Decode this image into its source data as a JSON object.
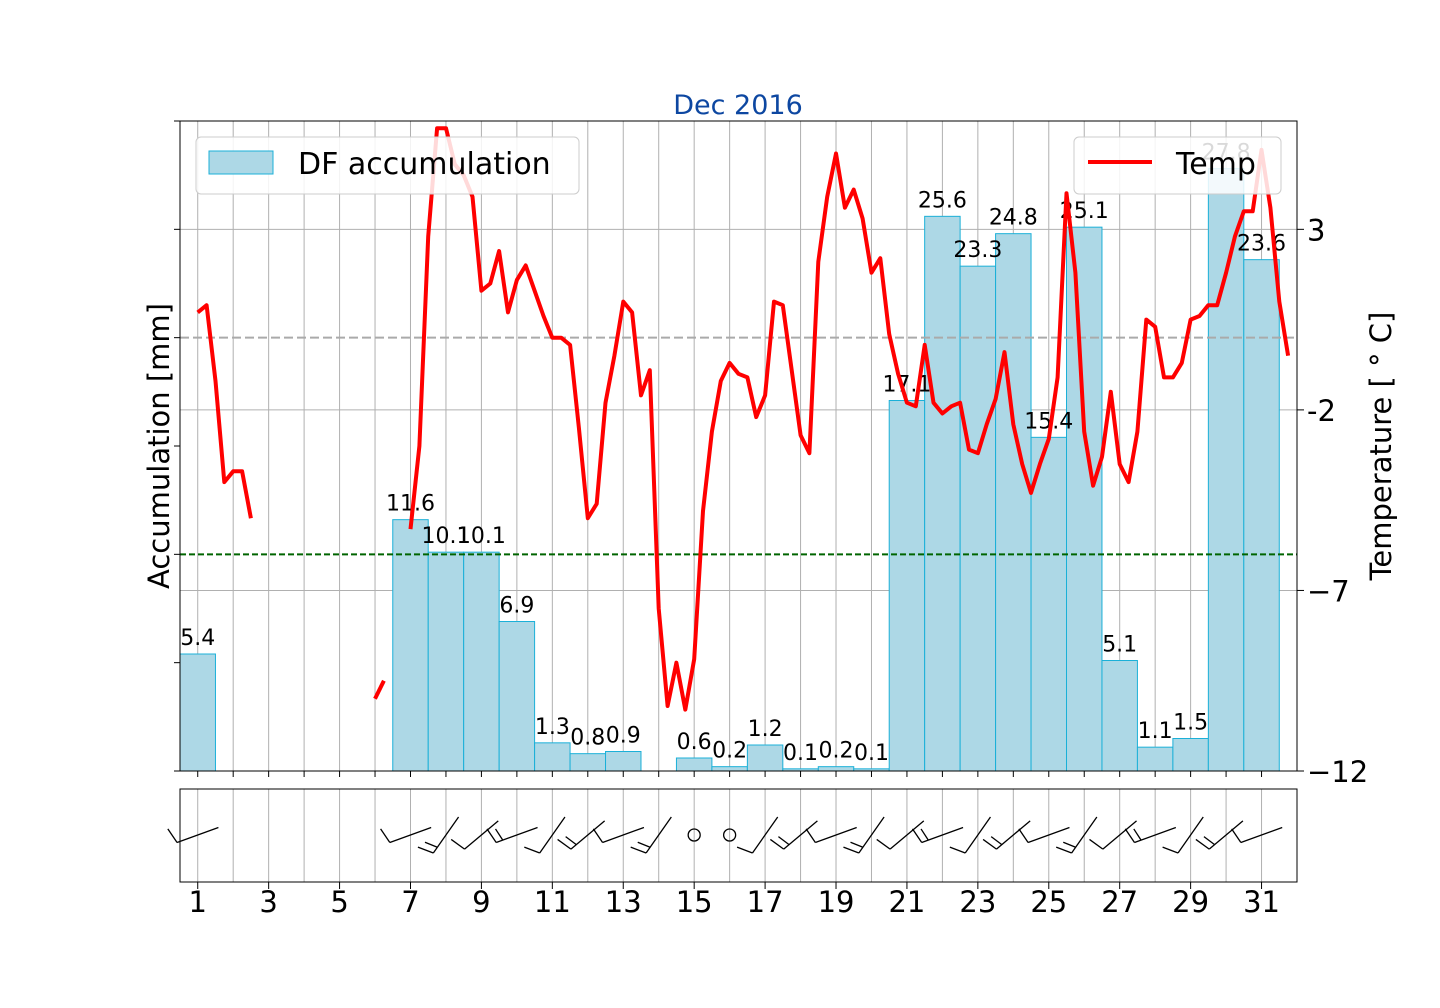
{
  "chart_data": {
    "type": "bar",
    "title": "Dec 2016",
    "title_color": "#0d47a1",
    "xlabel": "",
    "ylabel": "Accumulation [mm]",
    "ylabel_right": "Temperature [$^\\circ$C]",
    "ylabel_right_display": "Temperature [ ° C]",
    "x_ticks": [
      "1",
      "3",
      "5",
      "7",
      "9",
      "11",
      "13",
      "15",
      "17",
      "19",
      "21",
      "23",
      "25",
      "27",
      "29",
      "31"
    ],
    "xlim": [
      0.5,
      32
    ],
    "ylim_left": [
      0,
      30
    ],
    "ylim_right": [
      -12,
      6
    ],
    "y_ticks_right": [
      "3",
      "-2",
      "−7",
      "−12"
    ],
    "grid": true,
    "legend": [
      {
        "label": "DF accumulation",
        "placement": "top-left"
      },
      {
        "label": "Temp",
        "placement": "top-right"
      }
    ],
    "colors": {
      "bar_fill": "#add8e6",
      "bar_edge": "#1bb0d8",
      "temp_line": "#ff0000",
      "ref_gray": "#aaaaaa",
      "ref_green": "#006400",
      "grid": "#b0b0b0"
    },
    "reference_lines": [
      {
        "axis": "right",
        "value": 0,
        "style": "gray-dashed"
      },
      {
        "axis": "right",
        "value": -6,
        "style": "green-dashed"
      }
    ],
    "series": [
      {
        "name": "DF accumulation",
        "axis": "left",
        "days": [
          1,
          7,
          8,
          9,
          10,
          11,
          12,
          13,
          15,
          16,
          17,
          18,
          19,
          20,
          21,
          22,
          23,
          24,
          25,
          26,
          27,
          28,
          29,
          30,
          31
        ],
        "values": [
          5.4,
          11.6,
          10.1,
          10.1,
          6.9,
          1.3,
          0.8,
          0.9,
          0.6,
          0.2,
          1.2,
          0.1,
          0.2,
          0.1,
          17.1,
          25.6,
          23.3,
          24.8,
          15.4,
          25.1,
          5.1,
          1.1,
          1.5,
          27.8,
          23.6
        ],
        "labels": [
          "5.4",
          "11.6",
          "10.1",
          "10.1",
          "6.9",
          "1.3",
          "0.8",
          "0.9",
          "0.6",
          "0.2",
          "1.2",
          "0.1",
          "0.2",
          "0.1",
          "17.1",
          "25.6",
          "23.3",
          "24.8",
          "15.4",
          "25.1",
          "5.1",
          "1.1",
          "1.5",
          "27.8",
          "23.6"
        ]
      },
      {
        "name": "Temp",
        "axis": "right",
        "segments": [
          [
            [
              1.0,
              0.7
            ],
            [
              1.25,
              0.9
            ],
            [
              1.5,
              -1.2
            ],
            [
              1.75,
              -4.0
            ],
            [
              2.0,
              -3.7
            ],
            [
              2.25,
              -3.7
            ],
            [
              2.5,
              -5.0
            ]
          ],
          [
            [
              6.0,
              -10.0
            ],
            [
              6.25,
              -9.5
            ]
          ],
          [
            [
              7.0,
              -5.3
            ],
            [
              7.25,
              -3.0
            ],
            [
              7.5,
              2.8
            ],
            [
              7.75,
              5.8
            ],
            [
              8.0,
              5.8
            ],
            [
              8.25,
              4.8
            ],
            [
              8.5,
              4.5
            ],
            [
              8.75,
              3.9
            ],
            [
              9.0,
              1.3
            ],
            [
              9.25,
              1.5
            ],
            [
              9.5,
              2.4
            ],
            [
              9.75,
              0.7
            ],
            [
              10.0,
              1.6
            ],
            [
              10.25,
              2.0
            ],
            [
              10.5,
              1.3
            ],
            [
              10.75,
              0.6
            ],
            [
              11.0,
              0.0
            ],
            [
              11.25,
              0.0
            ],
            [
              11.5,
              -0.2
            ],
            [
              11.75,
              -2.5
            ],
            [
              12.0,
              -5.0
            ],
            [
              12.25,
              -4.6
            ],
            [
              12.5,
              -1.8
            ],
            [
              12.75,
              -0.5
            ],
            [
              13.0,
              1.0
            ],
            [
              13.25,
              0.7
            ],
            [
              13.5,
              -1.6
            ],
            [
              13.75,
              -0.9
            ],
            [
              14.0,
              -7.5
            ],
            [
              14.25,
              -10.2
            ],
            [
              14.5,
              -9.0
            ],
            [
              14.75,
              -10.3
            ],
            [
              15.0,
              -8.9
            ],
            [
              15.25,
              -4.8
            ],
            [
              15.5,
              -2.6
            ],
            [
              15.75,
              -1.2
            ],
            [
              16.0,
              -0.7
            ],
            [
              16.25,
              -1.0
            ],
            [
              16.5,
              -1.1
            ],
            [
              16.75,
              -2.2
            ],
            [
              17.0,
              -1.6
            ],
            [
              17.25,
              1.0
            ],
            [
              17.5,
              0.9
            ],
            [
              17.75,
              -0.9
            ],
            [
              18.0,
              -2.7
            ],
            [
              18.25,
              -3.2
            ],
            [
              18.5,
              2.1
            ],
            [
              18.75,
              3.9
            ],
            [
              19.0,
              5.1
            ],
            [
              19.25,
              3.6
            ],
            [
              19.5,
              4.1
            ],
            [
              19.75,
              3.3
            ],
            [
              20.0,
              1.8
            ],
            [
              20.25,
              2.2
            ],
            [
              20.5,
              0.1
            ],
            [
              20.75,
              -1.0
            ],
            [
              21.0,
              -1.8
            ],
            [
              21.25,
              -1.9
            ],
            [
              21.5,
              -0.2
            ],
            [
              21.75,
              -1.8
            ],
            [
              22.0,
              -2.1
            ],
            [
              22.25,
              -1.9
            ],
            [
              22.5,
              -1.8
            ],
            [
              22.75,
              -3.1
            ],
            [
              23.0,
              -3.2
            ],
            [
              23.25,
              -2.4
            ],
            [
              23.5,
              -1.7
            ],
            [
              23.75,
              -0.4
            ],
            [
              24.0,
              -2.4
            ],
            [
              24.25,
              -3.5
            ],
            [
              24.5,
              -4.3
            ],
            [
              24.75,
              -3.5
            ],
            [
              25.0,
              -2.8
            ],
            [
              25.25,
              -1.1
            ],
            [
              25.5,
              4.0
            ],
            [
              25.75,
              1.8
            ],
            [
              26.0,
              -2.6
            ],
            [
              26.25,
              -4.1
            ],
            [
              26.5,
              -3.3
            ],
            [
              26.75,
              -1.5
            ],
            [
              27.0,
              -3.5
            ],
            [
              27.25,
              -4.0
            ],
            [
              27.5,
              -2.6
            ],
            [
              27.75,
              0.5
            ],
            [
              28.0,
              0.3
            ],
            [
              28.25,
              -1.1
            ],
            [
              28.5,
              -1.1
            ],
            [
              28.75,
              -0.7
            ],
            [
              29.0,
              0.5
            ],
            [
              29.25,
              0.6
            ],
            [
              29.5,
              0.9
            ],
            [
              29.75,
              0.9
            ],
            [
              30.0,
              1.8
            ],
            [
              30.25,
              2.8
            ],
            [
              30.5,
              3.5
            ],
            [
              30.75,
              3.5
            ],
            [
              31.0,
              5.2
            ],
            [
              31.25,
              3.6
            ],
            [
              31.5,
              1.0
            ],
            [
              31.75,
              -0.5
            ]
          ]
        ]
      }
    ],
    "wind_panel": {
      "type": "wind barbs",
      "calm_days": [
        15,
        16
      ]
    }
  }
}
